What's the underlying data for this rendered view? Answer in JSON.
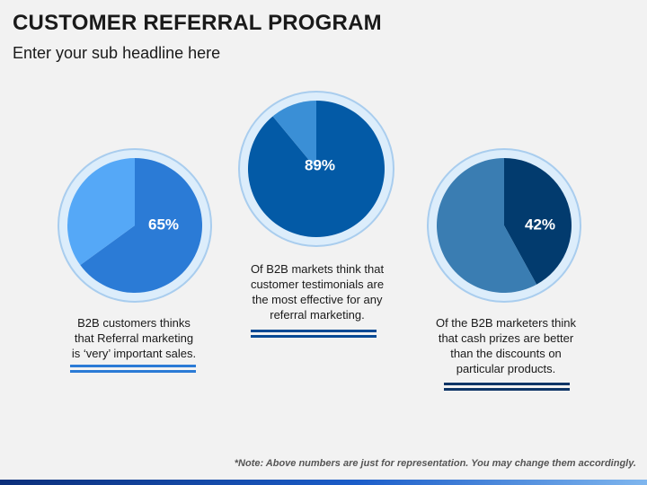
{
  "header": {
    "title": "CUSTOMER REFERRAL PROGRAM",
    "subtitle": "Enter your sub headline here"
  },
  "chart_data": [
    {
      "type": "pie",
      "slices": [
        {
          "value": 65
        },
        {
          "value": 35
        }
      ],
      "colors": [
        "#2b7bd6",
        "#55a8f7"
      ],
      "data_label": "65%",
      "caption": [
        "B2B customers thinks",
        "that Referral marketing",
        "is ‘very’ important sales."
      ],
      "underline_color": "#2b7bd6"
    },
    {
      "type": "pie",
      "slices": [
        {
          "value": 89
        },
        {
          "value": 11
        }
      ],
      "colors": [
        "#035aa6",
        "#3a8fd6"
      ],
      "data_label": "89%",
      "caption": [
        "Of B2B markets think that",
        "customer testimonials are",
        "the most effective for any",
        "referral marketing."
      ],
      "underline_color": "#0a4a94"
    },
    {
      "type": "pie",
      "slices": [
        {
          "value": 42
        },
        {
          "value": 58
        }
      ],
      "colors": [
        "#023b6e",
        "#3a7db2"
      ],
      "data_label": "42%",
      "caption": [
        "Of the B2B marketers think",
        "that cash prizes are better",
        "than the discounts on",
        "particular products."
      ],
      "underline_color": "#0f3566"
    }
  ],
  "note": "*Note: Above numbers are just for representation. You may change them accordingly."
}
